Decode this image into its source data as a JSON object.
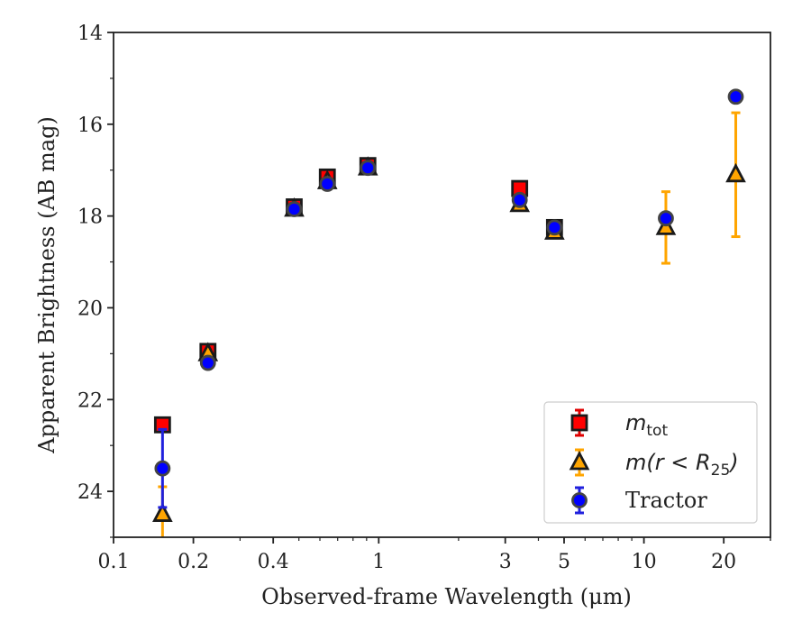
{
  "chart_data": {
    "type": "scatter",
    "xlabel": "Observed-frame Wavelength (μm)",
    "ylabel": "Apparent Brightness (AB mag)",
    "xscale": "log",
    "yinverted": true,
    "xlim": [
      0.1,
      30
    ],
    "ylim": [
      25,
      14
    ],
    "xticks": [
      0.1,
      0.2,
      0.4,
      1,
      3,
      5,
      10,
      20
    ],
    "xtick_labels": [
      "0.1",
      "0.2",
      "0.4",
      "1",
      "3",
      "5",
      "10",
      "20"
    ],
    "yticks": [
      14,
      16,
      18,
      20,
      22,
      24
    ],
    "ytick_labels": [
      "14",
      "16",
      "18",
      "20",
      "22",
      "24"
    ],
    "legend_position": "lower-right",
    "series": [
      {
        "key": "mtot",
        "legend_main": "m",
        "legend_sub": "tot",
        "marker": "square",
        "color": "#ff0000",
        "errcolor": "#e00000",
        "points": [
          {
            "x": 0.153,
            "y": 22.55,
            "err": 0
          },
          {
            "x": 0.227,
            "y": 20.95,
            "err": 0.08
          },
          {
            "x": 0.48,
            "y": 17.8,
            "err": 0.05
          },
          {
            "x": 0.64,
            "y": 17.15,
            "err": 0.05
          },
          {
            "x": 0.91,
            "y": 16.9,
            "err": 0.05
          },
          {
            "x": 3.4,
            "y": 17.4,
            "err": 0.05
          },
          {
            "x": 4.6,
            "y": 18.25,
            "err": 0.05
          }
        ]
      },
      {
        "key": "mr25",
        "legend_main": "m(r < R",
        "legend_sub": "25",
        "legend_tail": ")",
        "marker": "triangle",
        "color": "#ffa500",
        "errcolor": "#ffa500",
        "points": [
          {
            "x": 0.153,
            "y": 24.5,
            "err": 0.6
          },
          {
            "x": 0.227,
            "y": 21.0,
            "err": 0.05
          },
          {
            "x": 0.48,
            "y": 17.85,
            "err": 0.05
          },
          {
            "x": 0.64,
            "y": 17.25,
            "err": 0.05
          },
          {
            "x": 0.91,
            "y": 16.95,
            "err": 0.05
          },
          {
            "x": 3.4,
            "y": 17.75,
            "err": 0.05
          },
          {
            "x": 4.6,
            "y": 18.35,
            "err": 0.05
          },
          {
            "x": 12.1,
            "y": 18.25,
            "err": 0.78
          },
          {
            "x": 22.2,
            "y": 17.1,
            "err": 1.35
          }
        ]
      },
      {
        "key": "tractor",
        "legend_main": "Tractor",
        "marker": "circle",
        "color": "#0000ff",
        "errcolor": "#2020dd",
        "points": [
          {
            "x": 0.153,
            "y": 23.5,
            "err": 0.85
          },
          {
            "x": 0.227,
            "y": 21.2,
            "err": 0.05
          },
          {
            "x": 0.48,
            "y": 17.85,
            "err": 0.05
          },
          {
            "x": 0.64,
            "y": 17.3,
            "err": 0.05
          },
          {
            "x": 0.91,
            "y": 16.95,
            "err": 0.05
          },
          {
            "x": 3.4,
            "y": 17.65,
            "err": 0.05
          },
          {
            "x": 4.6,
            "y": 18.25,
            "err": 0.05
          },
          {
            "x": 12.1,
            "y": 18.05,
            "err": 0.05
          },
          {
            "x": 22.2,
            "y": 15.4,
            "err": 0.05
          }
        ]
      }
    ]
  }
}
